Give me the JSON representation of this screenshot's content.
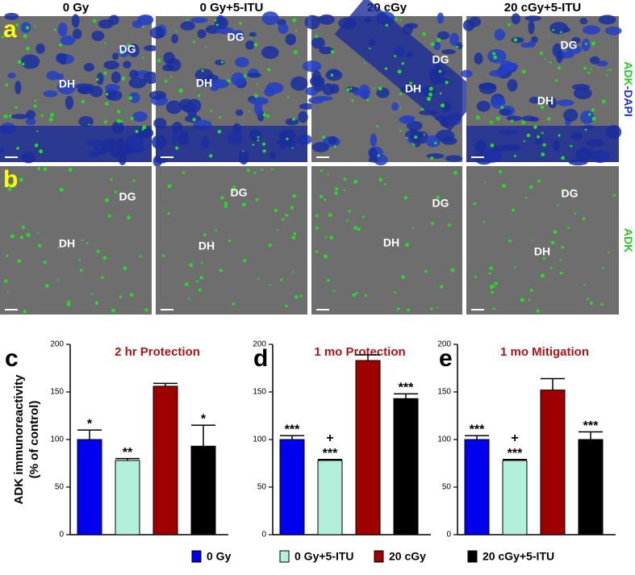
{
  "images": {
    "columns": [
      "0 Gy",
      "0 Gy+5-ITU",
      "20 cGy",
      "20 cGy+5-ITU"
    ],
    "rows": [
      {
        "letter": "a",
        "side_label": [
          "ADK",
          "-DAPI"
        ],
        "panels": [
          [
            "DG",
            "DH"
          ],
          [
            "DG",
            "DH"
          ],
          [
            "DG",
            "DH"
          ],
          [
            "DG",
            "DH"
          ]
        ]
      },
      {
        "letter": "b",
        "side_label": [
          "ADK"
        ],
        "panels": [
          [
            "DG",
            "DH"
          ],
          [
            "DG",
            "DH"
          ],
          [
            "DG",
            "DH"
          ],
          [
            "DG",
            "DH"
          ]
        ]
      }
    ]
  },
  "legend": [
    {
      "name": "0 Gy",
      "color": "#0000ee"
    },
    {
      "name": "0 Gy+5-ITU",
      "color": "#b3f0dc"
    },
    {
      "name": "20 cGy",
      "color": "#9e0000"
    },
    {
      "name": "20 cGy+5-ITU",
      "color": "#000000"
    }
  ],
  "chart_data": [
    {
      "type": "bar",
      "letter": "c",
      "title": "2 hr Protection",
      "ylabel": [
        "ADK immunoreactivity",
        "(% of control)"
      ],
      "values": [
        100,
        78,
        156,
        93
      ],
      "errors": [
        10,
        2,
        3,
        22
      ],
      "annotations": [
        [
          "*"
        ],
        [
          "**"
        ],
        null,
        [
          "*"
        ]
      ],
      "ylim": [
        0,
        200
      ],
      "yticks": [
        0,
        50,
        100,
        150,
        200
      ]
    },
    {
      "type": "bar",
      "letter": "d",
      "title": "1 mo Protection",
      "values": [
        100,
        78,
        183,
        143
      ],
      "errors": [
        4,
        1,
        6,
        5
      ],
      "annotations": [
        [
          "***"
        ],
        [
          "+",
          "***"
        ],
        null,
        [
          "***"
        ]
      ],
      "ylim": [
        0,
        200
      ],
      "yticks": [
        0,
        50,
        100,
        150,
        200
      ]
    },
    {
      "type": "bar",
      "letter": "e",
      "title": "1 mo Mitigation",
      "values": [
        100,
        78,
        152,
        100
      ],
      "errors": [
        4,
        1,
        12,
        8
      ],
      "annotations": [
        [
          "***"
        ],
        [
          "+",
          "***"
        ],
        null,
        [
          "***"
        ]
      ],
      "ylim": [
        0,
        200
      ],
      "yticks": [
        0,
        50,
        100,
        150,
        200
      ]
    }
  ]
}
